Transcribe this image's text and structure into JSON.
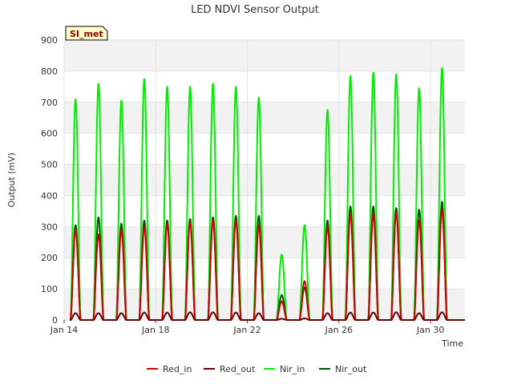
{
  "chart_data": {
    "type": "line",
    "title": "LED NDVI Sensor Output",
    "xlabel": "Time",
    "ylabel": "Output (mV)",
    "badge": "SI_met",
    "ylim": [
      0,
      900
    ],
    "xlim": [
      "2024-01-14",
      "2024-01-31T12:00"
    ],
    "y_ticks": [
      0,
      100,
      200,
      300,
      400,
      500,
      600,
      700,
      800,
      900
    ],
    "x_ticks": [
      {
        "date": "2024-01-14",
        "label": "Jan 14"
      },
      {
        "date": "2024-01-18",
        "label": "Jan 18"
      },
      {
        "date": "2024-01-22",
        "label": "Jan 22"
      },
      {
        "date": "2024-01-26",
        "label": "Jan 26"
      },
      {
        "date": "2024-01-30",
        "label": "Jan 30"
      }
    ],
    "grid": true,
    "legend_position": "bottom",
    "daily_peaks": {
      "dates": [
        "2024-01-14",
        "2024-01-15",
        "2024-01-16",
        "2024-01-17",
        "2024-01-18",
        "2024-01-19",
        "2024-01-20",
        "2024-01-21",
        "2024-01-22",
        "2024-01-23",
        "2024-01-24",
        "2024-01-25",
        "2024-01-26",
        "2024-01-27",
        "2024-01-28",
        "2024-01-29",
        "2024-01-30",
        "2024-01-31"
      ],
      "series": [
        {
          "name": "Red_in",
          "color": "#cc0000",
          "values": [
            290,
            275,
            290,
            300,
            310,
            315,
            320,
            320,
            305,
            60,
            125,
            300,
            340,
            340,
            345,
            320,
            355,
            0
          ]
        },
        {
          "name": "Red_out",
          "color": "#660000",
          "values": [
            22,
            22,
            22,
            24,
            24,
            25,
            25,
            24,
            22,
            4,
            5,
            22,
            24,
            24,
            25,
            22,
            25,
            0
          ]
        },
        {
          "name": "Nir_in",
          "color": "#00ee00",
          "values": [
            710,
            760,
            705,
            775,
            750,
            750,
            760,
            750,
            715,
            210,
            305,
            675,
            785,
            795,
            790,
            745,
            810,
            0
          ]
        },
        {
          "name": "Nir_out",
          "color": "#005500",
          "values": [
            305,
            330,
            310,
            320,
            320,
            325,
            330,
            335,
            335,
            80,
            105,
            320,
            365,
            365,
            360,
            355,
            380,
            0
          ]
        }
      ]
    }
  }
}
